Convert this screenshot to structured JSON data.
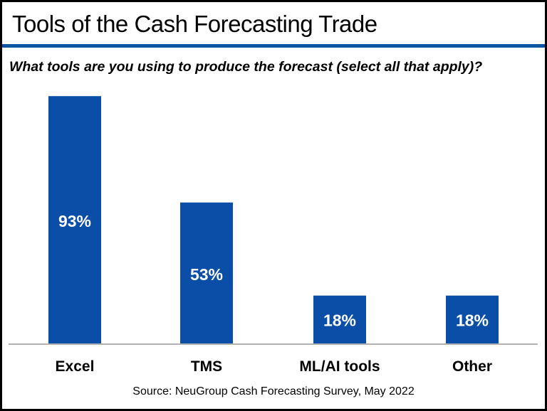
{
  "chart_data": {
    "type": "bar",
    "title": "Tools of the Cash Forecasting Trade",
    "subtitle": "What tools are you using to produce the forecast (select all that apply)?",
    "categories": [
      "Excel",
      "TMS",
      "ML/AI tools",
      "Other"
    ],
    "values": [
      93,
      53,
      18,
      18
    ],
    "data_labels": [
      "93%",
      "53%",
      "18%",
      "18%"
    ],
    "xlabel": "",
    "ylabel": "",
    "ylim": [
      0,
      100
    ],
    "grid": false,
    "legend": "none",
    "bar_color": "#0a4ea8",
    "source": "Source: NeuGroup Cash Forecasting Survey, May 2022"
  },
  "accent_color": "#0b57a4"
}
